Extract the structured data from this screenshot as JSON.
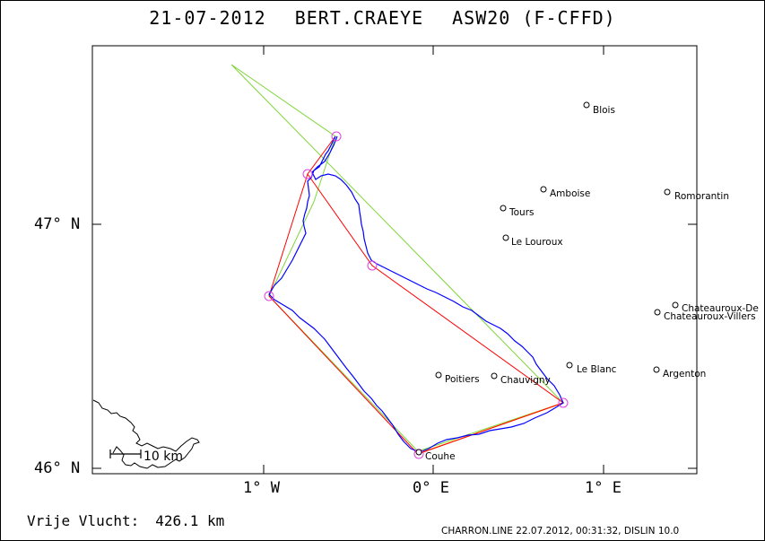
{
  "header": {
    "date": "21-07-2012",
    "pilot": "BERT.CRAEYE",
    "glider": "ASW20 (F-CFFD)"
  },
  "axes": {
    "lat_labels": [
      "47° N",
      "46° N"
    ],
    "lon_labels": [
      "1° W",
      "0° E",
      "1° E"
    ]
  },
  "places": [
    {
      "name": "Blois"
    },
    {
      "name": "Amboise"
    },
    {
      "name": "Romorantin"
    },
    {
      "name": "Tours"
    },
    {
      "name": "Le Louroux"
    },
    {
      "name": "Chateauroux-De"
    },
    {
      "name": "Chateauroux-Villers"
    },
    {
      "name": "Le Blanc"
    },
    {
      "name": "Argenton"
    },
    {
      "name": "Poitiers"
    },
    {
      "name": "Chauvigny"
    },
    {
      "name": "Couhe"
    }
  ],
  "scale": {
    "label": "10 km"
  },
  "footer": {
    "distance_label": "Vrije Vlucht:",
    "distance_value": "426.1 km",
    "credit": "CHARRON.LINE 22.07.2012, 00:31:32, DISLIN 10.0"
  },
  "colors": {
    "track": "#0000ff",
    "task": "#ff0000",
    "optimized": "#7fd63a",
    "turnpoint": "#e040e0",
    "orange": "#ff9900",
    "coast": "#000000"
  }
}
